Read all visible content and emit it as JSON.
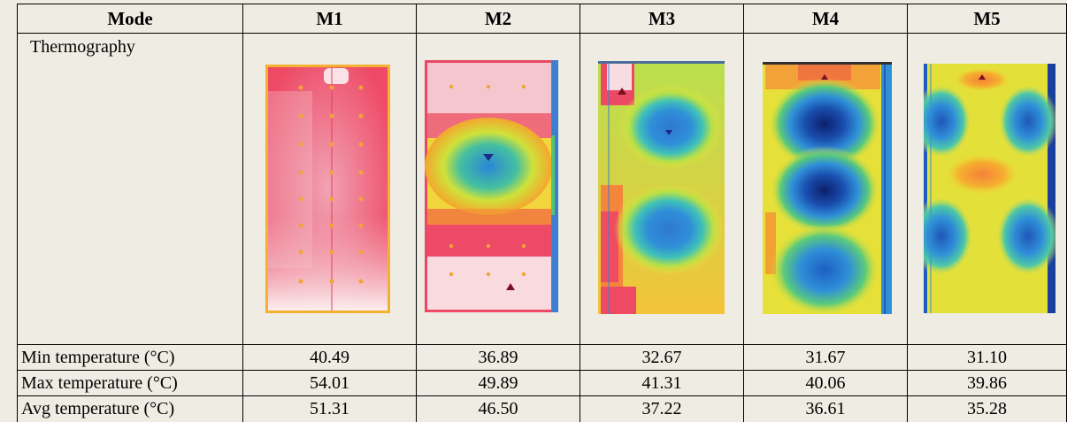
{
  "table": {
    "header": [
      "Mode",
      "M1",
      "M2",
      "M3",
      "M4",
      "M5"
    ],
    "thermography_label": "Thermography",
    "rows": [
      {
        "label": "Min temperature (°C)",
        "values": [
          "40.49",
          "36.89",
          "32.67",
          "31.67",
          "31.10"
        ]
      },
      {
        "label": "Max temperature (°C)",
        "values": [
          "54.01",
          "49.89",
          "41.31",
          "40.06",
          "39.86"
        ]
      },
      {
        "label": "Avg temperature (°C)",
        "values": [
          "51.31",
          "46.50",
          "37.22",
          "36.61",
          "35.28"
        ]
      }
    ]
  },
  "thermal_images": [
    {
      "mode": "M1",
      "description_icon": "thermal-image-m1"
    },
    {
      "mode": "M2",
      "description_icon": "thermal-image-m2"
    },
    {
      "mode": "M3",
      "description_icon": "thermal-image-m3"
    },
    {
      "mode": "M4",
      "description_icon": "thermal-image-m4"
    },
    {
      "mode": "M5",
      "description_icon": "thermal-image-m5"
    }
  ],
  "colors": {
    "background": "#efece3",
    "hot_white": "#fbe9ea",
    "hot_pink": "#f0435f",
    "orange": "#f88a2c",
    "yellow": "#e8e335",
    "green": "#55c46a",
    "blue": "#2f8fd8",
    "deep_blue": "#173a9a"
  }
}
